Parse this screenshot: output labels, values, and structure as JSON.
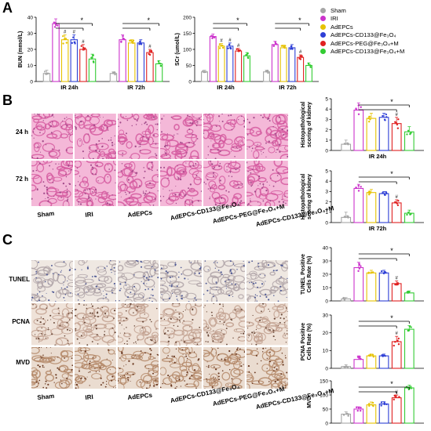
{
  "panels": {
    "a": "A",
    "b": "B",
    "c": "C"
  },
  "legend": [
    {
      "label": "Sham",
      "color": "#a6a6a6"
    },
    {
      "label": "IRI",
      "color": "#cc33cc"
    },
    {
      "label": "AdEPCs",
      "color": "#e6c200"
    },
    {
      "label": "AdEPCs-CD133@Fe₃O₄",
      "color": "#2e3fd6"
    },
    {
      "label": "AdEPCs-PEG@Fe₃O₄+M",
      "color": "#e02020"
    },
    {
      "label": "AdEPCs-CD133@Fe₃O₄+M",
      "color": "#33cc33"
    }
  ],
  "sig_star": "*",
  "hash": "#",
  "micro_rows": {
    "b": [
      "24 h",
      "72 h"
    ],
    "c": [
      "TUNEL",
      "PCNA",
      "MVD"
    ]
  },
  "micro_cols": [
    "Sham",
    "IRI",
    "AdEPCs",
    "AdEPCs-CD133@Fe₃O₄",
    "AdEPCs-PEG@Fe₃O₄+M",
    "AdEPCs-CD133@Fe₃O₄+M"
  ],
  "chart_data": [
    {
      "id": "bun",
      "type": "bar",
      "ylabel": "BUN (mmol/L)",
      "ylim": [
        0,
        40
      ],
      "yticks": [
        0,
        10,
        20,
        30,
        40
      ],
      "groups": [
        "IR 24h",
        "IR 72h"
      ],
      "values": [
        [
          5,
          36,
          26,
          26,
          20,
          14
        ],
        [
          5,
          26,
          24,
          24,
          18,
          11
        ]
      ],
      "errors": [
        [
          2,
          3,
          3,
          3,
          3,
          3
        ],
        [
          1,
          3,
          2,
          2,
          2,
          2
        ]
      ],
      "hash_on": [
        [
          2,
          3,
          4
        ],
        [
          4
        ]
      ]
    },
    {
      "id": "scr",
      "type": "bar",
      "ylabel": "SCr (umol/L)",
      "ylim": [
        0,
        200
      ],
      "yticks": [
        0,
        50,
        100,
        150,
        200
      ],
      "groups": [
        "IR 24h",
        "IR 72h"
      ],
      "values": [
        [
          30,
          140,
          110,
          110,
          95,
          80
        ],
        [
          30,
          115,
          105,
          105,
          75,
          50
        ]
      ],
      "errors": [
        [
          5,
          8,
          8,
          10,
          8,
          10
        ],
        [
          5,
          10,
          8,
          10,
          8,
          8
        ]
      ],
      "hash_on": [
        [
          2,
          3,
          4
        ],
        [
          4
        ]
      ]
    },
    {
      "id": "hist24",
      "type": "bar",
      "ylabel": "Histopathological scoring of kidney",
      "xlabel": "IR 24h",
      "ylim": [
        0,
        5
      ],
      "yticks": [
        0,
        1,
        2,
        3,
        4,
        5
      ],
      "values": [
        0.6,
        3.9,
        3.1,
        3.2,
        2.6,
        1.8
      ],
      "errors": [
        0.4,
        0.7,
        0.5,
        0.4,
        0.6,
        0.5
      ],
      "hash_on": [
        4
      ]
    },
    {
      "id": "hist72",
      "type": "bar",
      "ylabel": "Histopathological scoring of kidney",
      "xlabel": "IR 72h",
      "ylim": [
        0,
        5
      ],
      "yticks": [
        0,
        1,
        2,
        3,
        4,
        5
      ],
      "values": [
        0.5,
        3.3,
        2.9,
        2.8,
        1.9,
        0.9
      ],
      "errors": [
        0.5,
        0.4,
        0.3,
        0.2,
        0.3,
        0.3
      ],
      "hash_on": [
        4
      ]
    },
    {
      "id": "tunel",
      "type": "bar",
      "ylabel": "TUNEL Positive Cells Rate (%)",
      "ylim": [
        0,
        40
      ],
      "yticks": [
        0,
        10,
        20,
        30,
        40
      ],
      "values": [
        1.5,
        25,
        21,
        21,
        13,
        6
      ],
      "errors": [
        1,
        4,
        2,
        2,
        2,
        1.5
      ],
      "hash_on": [
        4
      ]
    },
    {
      "id": "pcna",
      "type": "bar",
      "ylabel": "PCNA Positive Cells Rate (%)",
      "ylim": [
        0,
        30
      ],
      "yticks": [
        0,
        10,
        20,
        30
      ],
      "values": [
        1,
        5,
        7,
        7,
        15,
        22
      ],
      "errors": [
        1,
        2,
        1,
        1,
        3,
        2
      ],
      "hash_on": [
        4
      ]
    },
    {
      "id": "mvd",
      "type": "bar",
      "ylabel": "MVD",
      "ylim": [
        0,
        150
      ],
      "yticks": [
        0,
        50,
        100,
        150
      ],
      "values": [
        32,
        50,
        65,
        68,
        90,
        125
      ],
      "errors": [
        8,
        8,
        10,
        8,
        10,
        10
      ],
      "hash_on": [
        4
      ]
    }
  ]
}
